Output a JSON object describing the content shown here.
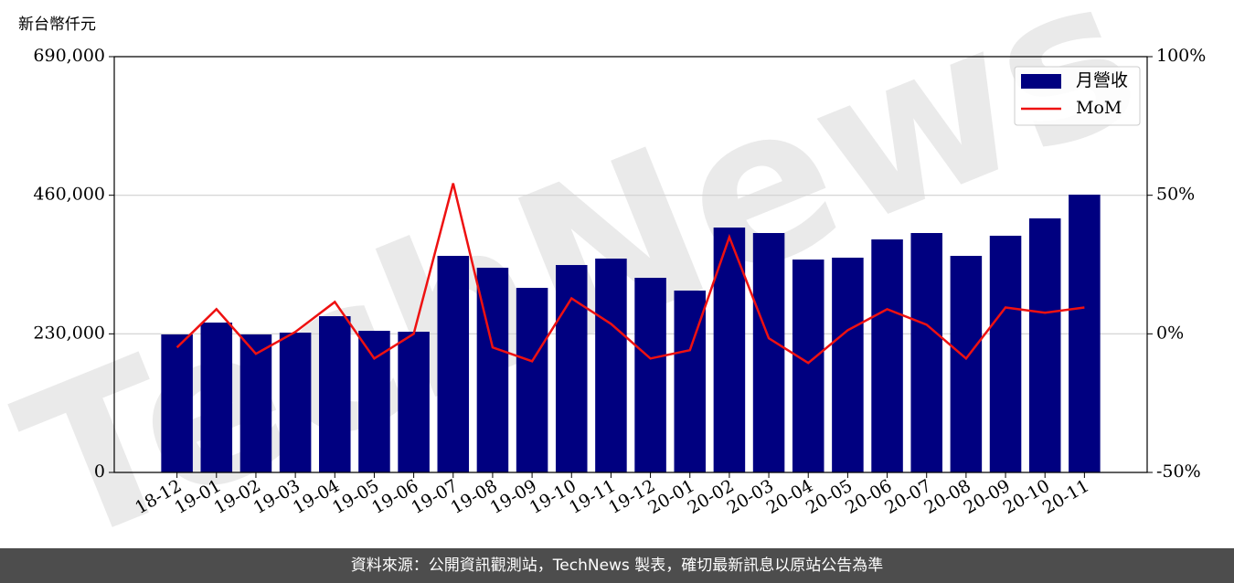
{
  "chart_data": {
    "type": "bar_line",
    "y_axis_label": "新台幣仟元",
    "watermark": "TechNews",
    "categories": [
      "18-12",
      "19-01",
      "19-02",
      "19-03",
      "19-04",
      "19-05",
      "19-06",
      "19-07",
      "19-08",
      "19-09",
      "19-10",
      "19-11",
      "19-12",
      "20-01",
      "20-02",
      "20-03",
      "20-04",
      "20-05",
      "20-06",
      "20-07",
      "20-08",
      "20-09",
      "20-10",
      "20-11"
    ],
    "series": [
      {
        "name": "月營收",
        "color": "#000080",
        "type": "bar",
        "values": [
          229000,
          248700,
          229000,
          232000,
          259300,
          235000,
          233500,
          359400,
          339700,
          306300,
          344200,
          354900,
          323000,
          301800,
          406400,
          397300,
          353300,
          356400,
          386700,
          397300,
          359400,
          392800,
          421600,
          461000
        ]
      },
      {
        "name": "MoM",
        "color": "#ee1111",
        "type": "line",
        "axis": "y2",
        "values": [
          -4.9,
          8.9,
          -7.2,
          0.7,
          11.5,
          -8.9,
          0,
          54.3,
          -4.9,
          -9.9,
          12.8,
          3.6,
          -8.9,
          -5.9,
          34.9,
          -1.6,
          -10.5,
          1.3,
          8.9,
          3.3,
          -8.9,
          9.5,
          7.6,
          9.5
        ]
      }
    ],
    "ylim": [
      0,
      690000
    ],
    "yticks": [
      {
        "value": 0,
        "label": "0"
      },
      {
        "value": 230000,
        "label": "230,000"
      },
      {
        "value": 460000,
        "label": "460,000"
      },
      {
        "value": 690000,
        "label": "690,000"
      }
    ],
    "y2lim": [
      -50,
      100
    ],
    "y2ticks": [
      {
        "value": -50,
        "label": "-50%"
      },
      {
        "value": 0,
        "label": "0%"
      },
      {
        "value": 50,
        "label": "50%"
      },
      {
        "value": 100,
        "label": "100%"
      }
    ],
    "grid": true,
    "legend": "upper right"
  },
  "footer": "資料來源：公開資訊觀測站，TechNews 製表，確切最新訊息以原站公告為準"
}
